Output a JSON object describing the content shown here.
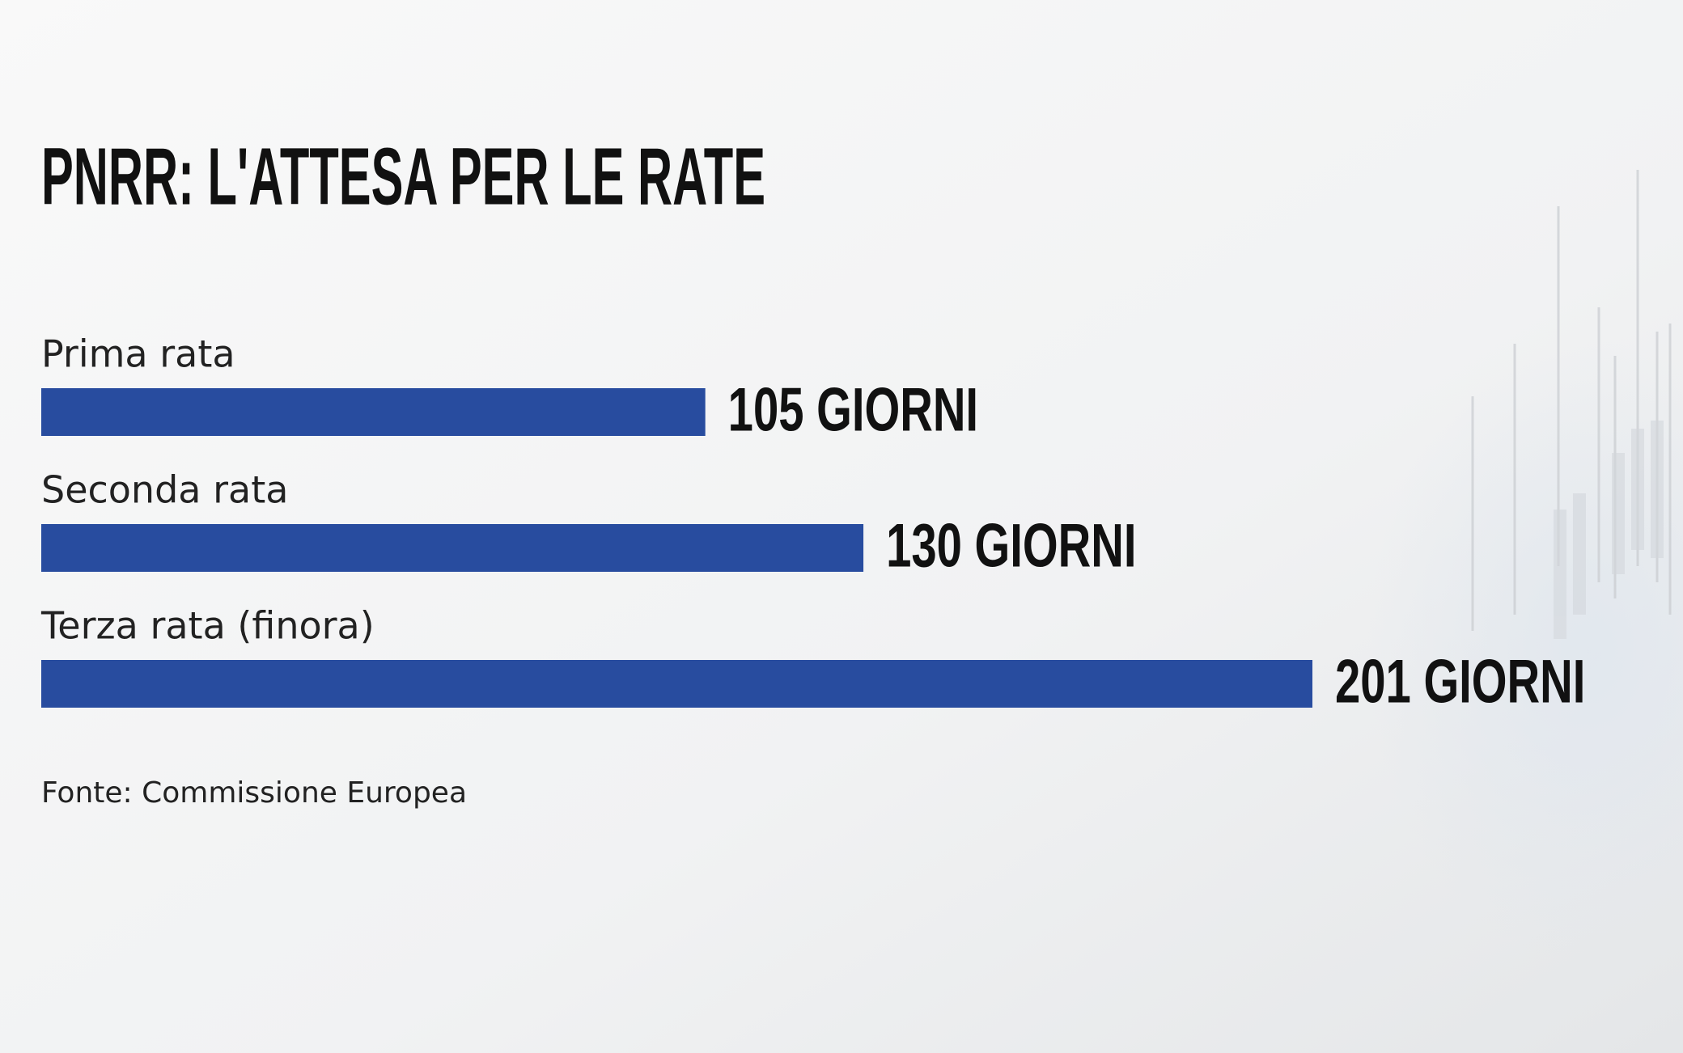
{
  "chart_data": {
    "type": "bar",
    "orientation": "horizontal",
    "title": "PNRR: L'ATTESA PER LE RATE",
    "categories": [
      "Prima rata",
      "Seconda rata",
      "Terza rata (finora)"
    ],
    "values": [
      105,
      130,
      201
    ],
    "value_labels": [
      "105 GIORNI",
      "130 GIORNI",
      "201 GIORNI"
    ],
    "color": "#284c9f",
    "source": "Fonte: Commissione Europea"
  }
}
